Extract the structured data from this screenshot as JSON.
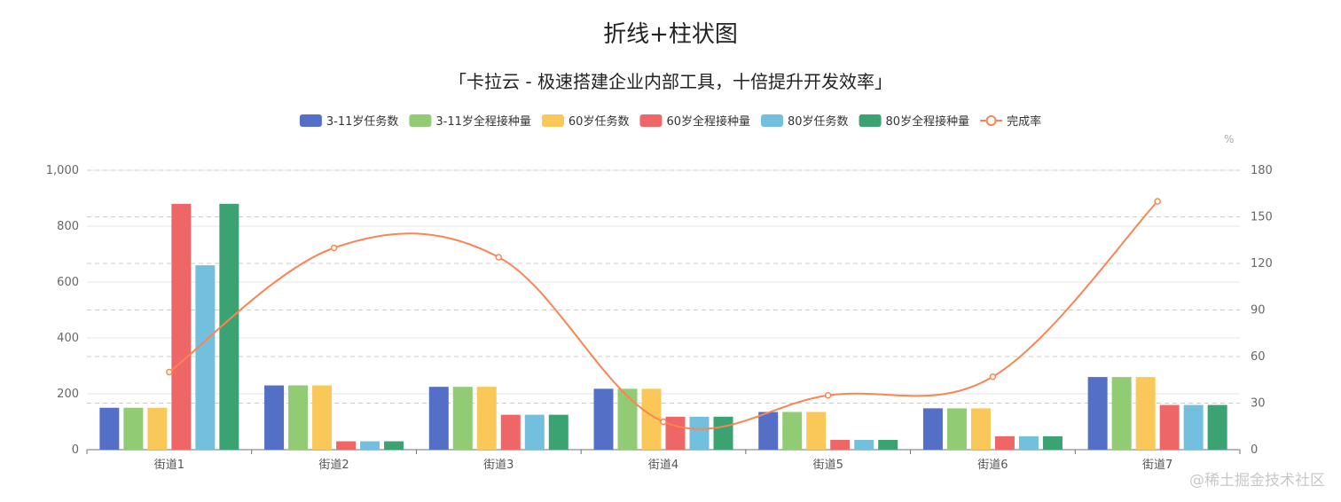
{
  "chart_data": {
    "type": "bar",
    "title": "折线+柱状图",
    "subtitle": "「卡拉云 - 极速搭建企业内部工具，十倍提升开发效率」",
    "categories": [
      "街道1",
      "街道2",
      "街道3",
      "街道4",
      "街道5",
      "街道6",
      "街道7"
    ],
    "y_left": {
      "range": [
        0,
        1000
      ],
      "ticks": [
        "0",
        "200",
        "400",
        "600",
        "800",
        "1,000"
      ],
      "tick_values": [
        0,
        200,
        400,
        600,
        800,
        1000
      ]
    },
    "y_right": {
      "unit": "%",
      "range": [
        0,
        180
      ],
      "ticks": [
        "0",
        "30",
        "60",
        "90",
        "120",
        "150",
        "180"
      ],
      "tick_values": [
        0,
        30,
        60,
        90,
        120,
        150,
        180
      ]
    },
    "series": [
      {
        "name": "3-11岁任务数",
        "type": "bar",
        "axis": "left",
        "color": "#5470c6",
        "values": [
          150,
          230,
          225,
          218,
          135,
          148,
          260
        ]
      },
      {
        "name": "3-11岁全程接种量",
        "type": "bar",
        "axis": "left",
        "color": "#91cc75",
        "values": [
          150,
          230,
          225,
          218,
          135,
          148,
          260
        ]
      },
      {
        "name": "60岁任务数",
        "type": "bar",
        "axis": "left",
        "color": "#fac858",
        "values": [
          150,
          230,
          225,
          218,
          135,
          148,
          260
        ]
      },
      {
        "name": "60岁全程接种量",
        "type": "bar",
        "axis": "left",
        "color": "#ee6666",
        "values": [
          880,
          30,
          125,
          118,
          35,
          48,
          160
        ]
      },
      {
        "name": "80岁任务数",
        "type": "bar",
        "axis": "left",
        "color": "#73c0de",
        "values": [
          660,
          30,
          125,
          118,
          35,
          48,
          160
        ]
      },
      {
        "name": "80岁全程接种量",
        "type": "bar",
        "axis": "left",
        "color": "#3ba272",
        "values": [
          880,
          30,
          125,
          118,
          35,
          48,
          160
        ]
      },
      {
        "name": "完成率",
        "type": "line",
        "axis": "right",
        "color": "#fc8452",
        "smooth": true,
        "values": [
          50,
          130,
          124,
          18,
          35,
          47,
          160
        ]
      }
    ],
    "legend_position": "top-center",
    "grid": true
  },
  "watermark": "@稀土掘金技术社区"
}
